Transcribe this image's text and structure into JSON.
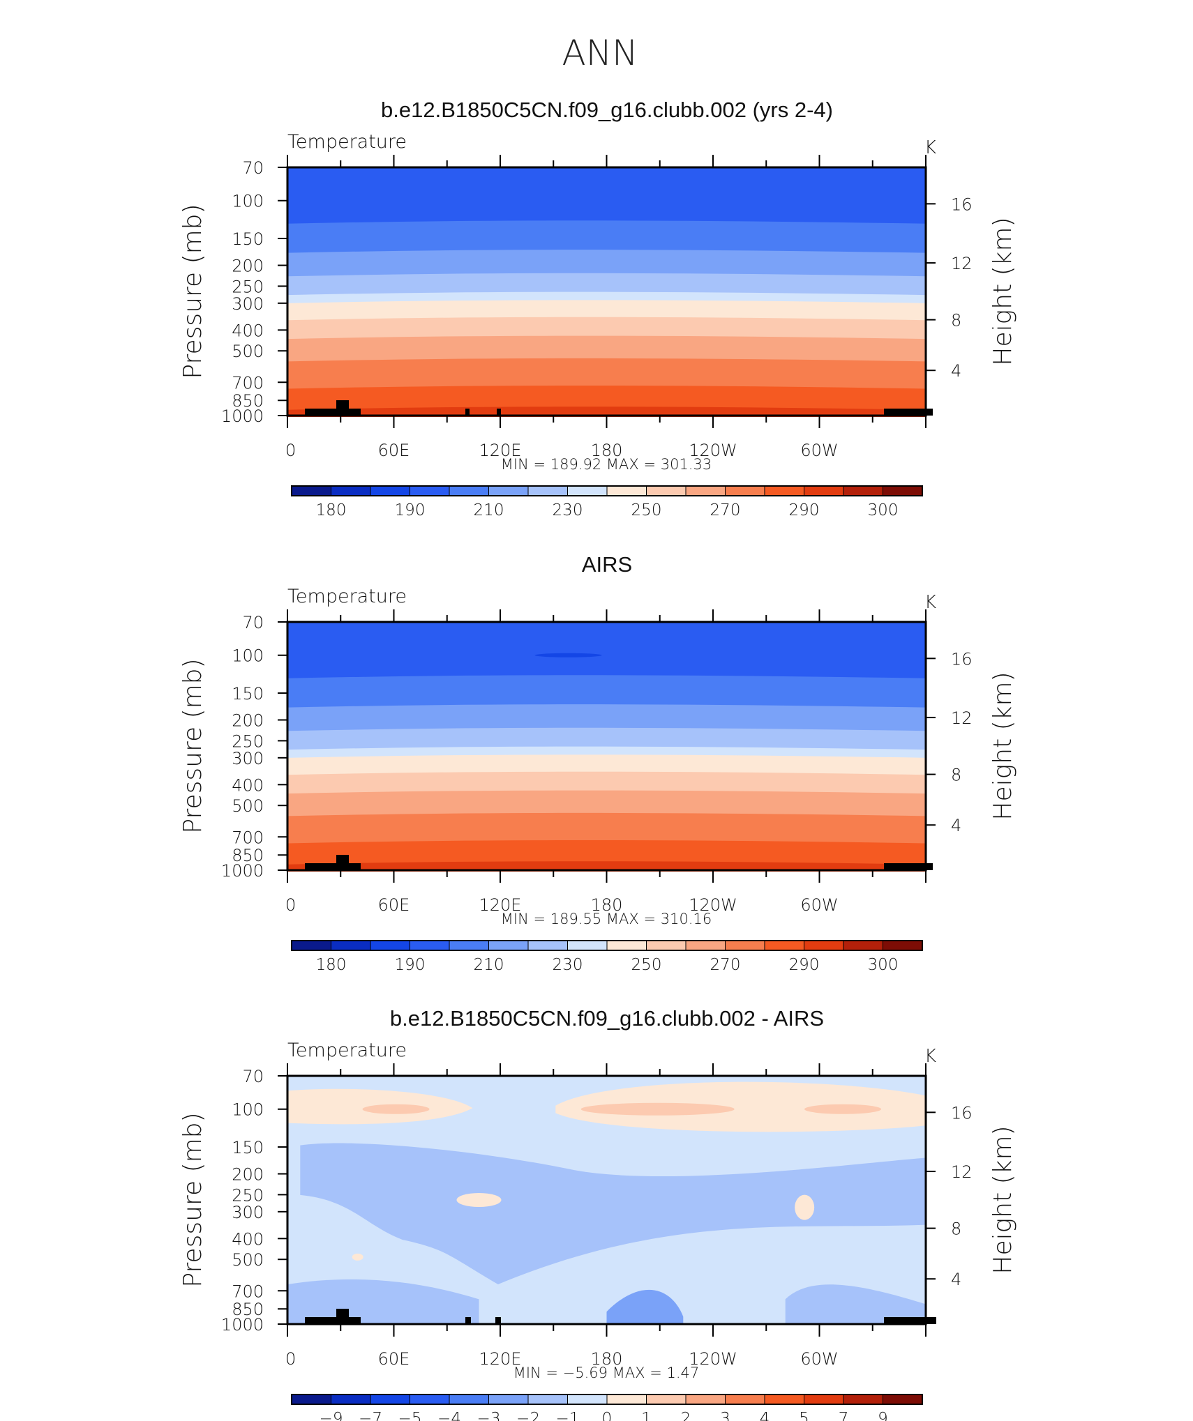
{
  "page_title": "ANN",
  "chart_data": [
    {
      "type": "contour",
      "title": "b.e12.B1850C5CN.f09_g16.clubb.002 (yrs 2-4)",
      "variable": "Temperature",
      "units": "K",
      "ylabel": "Pressure (mb)",
      "ylabel2": "Height (km)",
      "y_ticks": [
        "70",
        "100",
        "150",
        "200",
        "250",
        "300",
        "400",
        "500",
        "700",
        "850",
        "1000"
      ],
      "y2_ticks": [
        "16",
        "12",
        "8",
        "4"
      ],
      "x_ticks": [
        "0",
        "60E",
        "120E",
        "180",
        "120W",
        "60W"
      ],
      "stats_text": "MIN  =  189.92   MAX  =  301.33",
      "min": 189.92,
      "max": 301.33,
      "colorbar_labels": [
        "180",
        "190",
        "210",
        "230",
        "250",
        "270",
        "290",
        "300"
      ]
    },
    {
      "type": "contour",
      "title": "AIRS",
      "variable": "Temperature",
      "units": "K",
      "ylabel": "Pressure (mb)",
      "ylabel2": "Height (km)",
      "y_ticks": [
        "70",
        "100",
        "150",
        "200",
        "250",
        "300",
        "400",
        "500",
        "700",
        "850",
        "1000"
      ],
      "y2_ticks": [
        "16",
        "12",
        "8",
        "4"
      ],
      "x_ticks": [
        "0",
        "60E",
        "120E",
        "180",
        "120W",
        "60W"
      ],
      "stats_text": "MIN  =  189.55   MAX  =  310.16",
      "min": 189.55,
      "max": 310.16,
      "colorbar_labels": [
        "180",
        "190",
        "210",
        "230",
        "250",
        "270",
        "290",
        "300"
      ]
    },
    {
      "type": "contour",
      "title": "b.e12.B1850C5CN.f09_g16.clubb.002 - AIRS",
      "variable": "Temperature",
      "units": "K",
      "ylabel": "Pressure (mb)",
      "ylabel2": "Height (km)",
      "y_ticks": [
        "70",
        "100",
        "150",
        "200",
        "250",
        "300",
        "400",
        "500",
        "700",
        "850",
        "1000"
      ],
      "y2_ticks": [
        "16",
        "12",
        "8",
        "4"
      ],
      "x_ticks": [
        "0",
        "60E",
        "120E",
        "180",
        "120W",
        "60W"
      ],
      "stats_text": "MIN  =   −5.69   MAX  =     1.47",
      "min": -5.69,
      "max": 1.47,
      "colorbar_labels": [
        "−9",
        "−7",
        "−5",
        "−4",
        "−3",
        "−2",
        "−1",
        "0",
        "1",
        "2",
        "3",
        "4",
        "5",
        "7",
        "9"
      ]
    }
  ],
  "colormap": [
    "#0a1a8c",
    "#0a2dc2",
    "#1446e6",
    "#2a5cf2",
    "#4a7df5",
    "#7aa2f8",
    "#a6c2fa",
    "#d2e4fc",
    "#fde8d6",
    "#fccab0",
    "#f9a682",
    "#f77e4e",
    "#f55a22",
    "#e23c10",
    "#b3200a",
    "#7d0d05"
  ]
}
